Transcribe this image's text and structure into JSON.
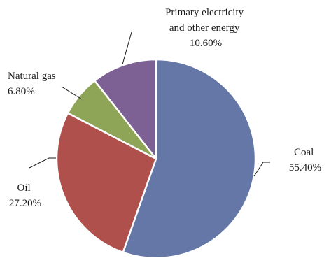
{
  "chart_data": {
    "type": "pie",
    "start_angle_deg": 0,
    "direction": "clockwise",
    "slices": [
      {
        "label": "Coal",
        "value": 55.4,
        "value_text": "55.40%",
        "color": "#6577a6"
      },
      {
        "label": "Oil",
        "value": 27.2,
        "value_text": "27.20%",
        "color": "#b0504d"
      },
      {
        "label": "Natural gas",
        "value": 6.8,
        "value_text": "6.80%",
        "color": "#8ea457"
      },
      {
        "label": "Primary electricity and other energy",
        "value": 10.6,
        "value_text": "10.60%",
        "color": "#7d6094"
      }
    ],
    "labels": {
      "coal": {
        "lines": [
          "Coal",
          "55.40%"
        ]
      },
      "oil": {
        "lines": [
          "Oil",
          "27.20%"
        ]
      },
      "natural_gas": {
        "lines": [
          "Natural gas",
          "6.80%"
        ]
      },
      "primary": {
        "lines": [
          "Primary electricity",
          "and other energy",
          "10.60%"
        ]
      }
    }
  }
}
